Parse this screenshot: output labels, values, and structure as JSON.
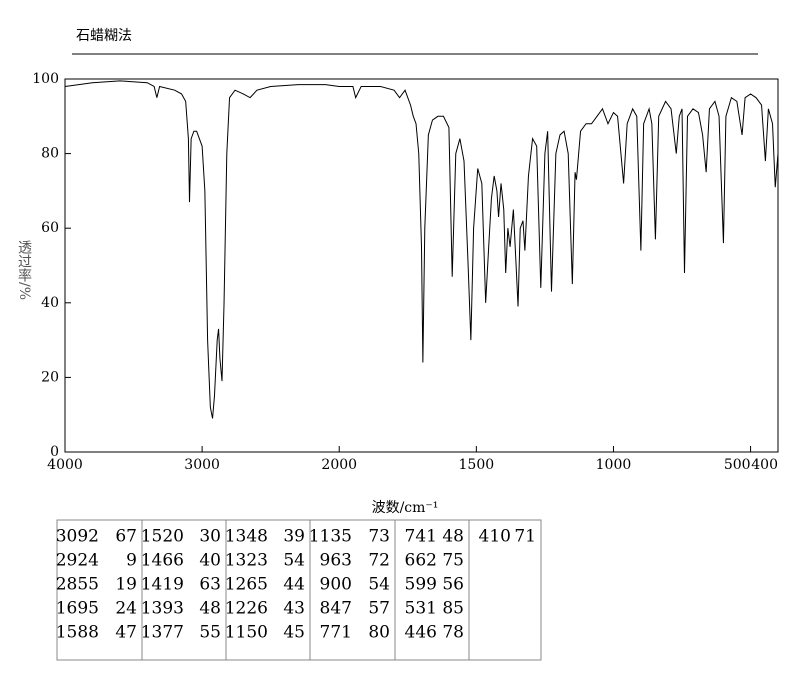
{
  "chart_data": {
    "type": "line",
    "title": "石蜡糊法",
    "x_label": "波数/cm⁻¹",
    "y_label": "透过率/%",
    "xlim": [
      4000,
      400
    ],
    "xticks": [
      4000,
      3000,
      2000,
      1500,
      1000,
      500,
      400
    ],
    "x_scale_change": {
      "at": 2000,
      "factor": 2
    },
    "ylim": [
      0,
      100
    ],
    "yticks": [
      0,
      20,
      40,
      60,
      80,
      100
    ],
    "color": "#000000",
    "x": [
      4000,
      3800,
      3600,
      3400,
      3350,
      3330,
      3310,
      3200,
      3150,
      3120,
      3100,
      3092,
      3080,
      3060,
      3040,
      3000,
      2980,
      2960,
      2940,
      2924,
      2910,
      2890,
      2880,
      2870,
      2855,
      2840,
      2820,
      2800,
      2760,
      2700,
      2650,
      2600,
      2500,
      2300,
      2100,
      2000,
      1950,
      1940,
      1920,
      1850,
      1800,
      1780,
      1760,
      1740,
      1730,
      1720,
      1710,
      1700,
      1695,
      1688,
      1675,
      1660,
      1640,
      1620,
      1600,
      1588,
      1575,
      1560,
      1545,
      1530,
      1520,
      1510,
      1495,
      1480,
      1466,
      1455,
      1445,
      1435,
      1425,
      1419,
      1410,
      1400,
      1393,
      1385,
      1377,
      1365,
      1355,
      1348,
      1340,
      1330,
      1323,
      1310,
      1295,
      1280,
      1265,
      1250,
      1240,
      1226,
      1210,
      1195,
      1180,
      1165,
      1150,
      1140,
      1135,
      1120,
      1100,
      1080,
      1060,
      1040,
      1020,
      1000,
      985,
      963,
      950,
      930,
      915,
      900,
      890,
      870,
      860,
      847,
      835,
      810,
      790,
      771,
      760,
      750,
      741,
      730,
      710,
      690,
      675,
      662,
      650,
      630,
      615,
      599,
      590,
      570,
      550,
      531,
      520,
      500,
      480,
      460,
      446,
      435,
      420,
      410,
      400
    ],
    "values": [
      98,
      99,
      99.5,
      99,
      98,
      95,
      98,
      97,
      96,
      94,
      84,
      67,
      84,
      86,
      86,
      82,
      70,
      30,
      12,
      9,
      15,
      30,
      33,
      25,
      19,
      40,
      80,
      95,
      97,
      96,
      95,
      97,
      98,
      98.5,
      98.5,
      98,
      98,
      95,
      98,
      98,
      97,
      95,
      97,
      93,
      90,
      88,
      80,
      55,
      24,
      60,
      85,
      89,
      90,
      90,
      87,
      47,
      80,
      84,
      78,
      50,
      30,
      60,
      76,
      72,
      40,
      55,
      68,
      74,
      70,
      63,
      72,
      65,
      48,
      60,
      55,
      65,
      50,
      39,
      60,
      62,
      54,
      74,
      84,
      82,
      44,
      80,
      86,
      43,
      80,
      85,
      86,
      80,
      45,
      75,
      73,
      86,
      88,
      88,
      90,
      92,
      88,
      91,
      90,
      72,
      88,
      92,
      90,
      54,
      88,
      92,
      88,
      57,
      90,
      94,
      92,
      80,
      90,
      92,
      48,
      90,
      92,
      91,
      85,
      75,
      92,
      94,
      90,
      56,
      90,
      95,
      94,
      85,
      95,
      96,
      95,
      93,
      78,
      92,
      88,
      71,
      80
    ]
  },
  "peak_table": {
    "columns": [
      [
        [
          3092,
          67
        ],
        [
          2924,
          9
        ],
        [
          2855,
          19
        ],
        [
          1695,
          24
        ],
        [
          1588,
          47
        ]
      ],
      [
        [
          1520,
          30
        ],
        [
          1466,
          40
        ],
        [
          1419,
          63
        ],
        [
          1393,
          48
        ],
        [
          1377,
          55
        ]
      ],
      [
        [
          1348,
          39
        ],
        [
          1323,
          54
        ],
        [
          1265,
          44
        ],
        [
          1226,
          43
        ],
        [
          1150,
          45
        ]
      ],
      [
        [
          1135,
          73
        ],
        [
          963,
          72
        ],
        [
          900,
          54
        ],
        [
          847,
          57
        ],
        [
          771,
          80
        ]
      ],
      [
        [
          741,
          48
        ],
        [
          662,
          75
        ],
        [
          599,
          56
        ],
        [
          531,
          85
        ],
        [
          446,
          78
        ]
      ],
      [
        [
          410,
          71
        ]
      ]
    ]
  }
}
